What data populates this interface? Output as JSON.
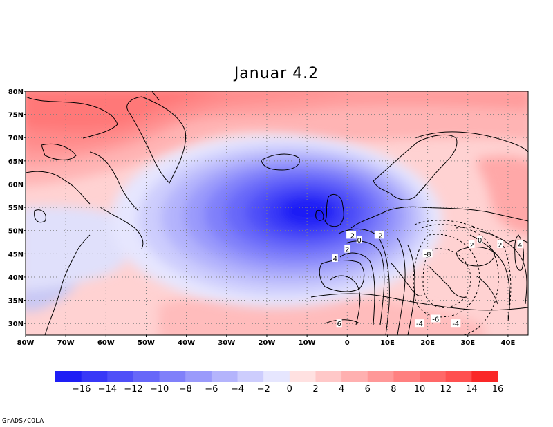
{
  "title": "Januar 4.2",
  "credit": "GrADS/COLA",
  "map": {
    "lon_range": [
      -80,
      45
    ],
    "lat_range": [
      27.5,
      80
    ],
    "lat_labels": [
      "80N",
      "75N",
      "70N",
      "65N",
      "60N",
      "55N",
      "50N",
      "45N",
      "40N",
      "35N",
      "30N"
    ],
    "lon_labels": [
      "80W",
      "70W",
      "60W",
      "50W",
      "40W",
      "30W",
      "20W",
      "10W",
      "0",
      "10E",
      "20E",
      "30E",
      "40E"
    ],
    "grid": "dotted 10° lon / 5° lat"
  },
  "colorbar": {
    "labels": [
      "-16",
      "-14",
      "-12",
      "-10",
      "-8",
      "-6",
      "-4",
      "-2",
      "0",
      "2",
      "4",
      "6",
      "8",
      "10",
      "12",
      "14",
      "16"
    ],
    "colors": [
      "#1e1ef5",
      "#3838f7",
      "#4f4ff8",
      "#6767f9",
      "#8080fa",
      "#9a9afb",
      "#b4b4fc",
      "#cdcdfd",
      "#e6e6fe",
      "#ffe1e1",
      "#ffc8c8",
      "#ffb0b0",
      "#ff9898",
      "#ff8080",
      "#ff6868",
      "#ff5050",
      "#fa2828"
    ]
  },
  "shaded_features": {
    "minimum": {
      "value": "< -16",
      "lon": -13,
      "lat": 54
    },
    "maximum_north": {
      "value": "> 10",
      "lon": -60,
      "lat": 78
    }
  },
  "contours": {
    "labels": [
      {
        "text": "-2",
        "lon": 1,
        "lat": 49
      },
      {
        "text": "0",
        "lon": 3,
        "lat": 48
      },
      {
        "text": "2",
        "lon": 0,
        "lat": 46
      },
      {
        "text": "4",
        "lon": -3,
        "lat": 44
      },
      {
        "text": "-2",
        "lon": 8,
        "lat": 49
      },
      {
        "text": "-8",
        "lon": 20,
        "lat": 45
      },
      {
        "text": "-6",
        "lon": 22,
        "lat": 31
      },
      {
        "text": "-4",
        "lon": 18,
        "lat": 30
      },
      {
        "text": "-4",
        "lon": 27,
        "lat": 30
      },
      {
        "text": "6",
        "lon": -2,
        "lat": 30
      },
      {
        "text": "2",
        "lon": 31,
        "lat": 47
      },
      {
        "text": "0",
        "lon": 33,
        "lat": 48
      },
      {
        "text": "2",
        "lon": 38,
        "lat": 47
      },
      {
        "text": "4",
        "lon": 43,
        "lat": 47
      }
    ]
  }
}
